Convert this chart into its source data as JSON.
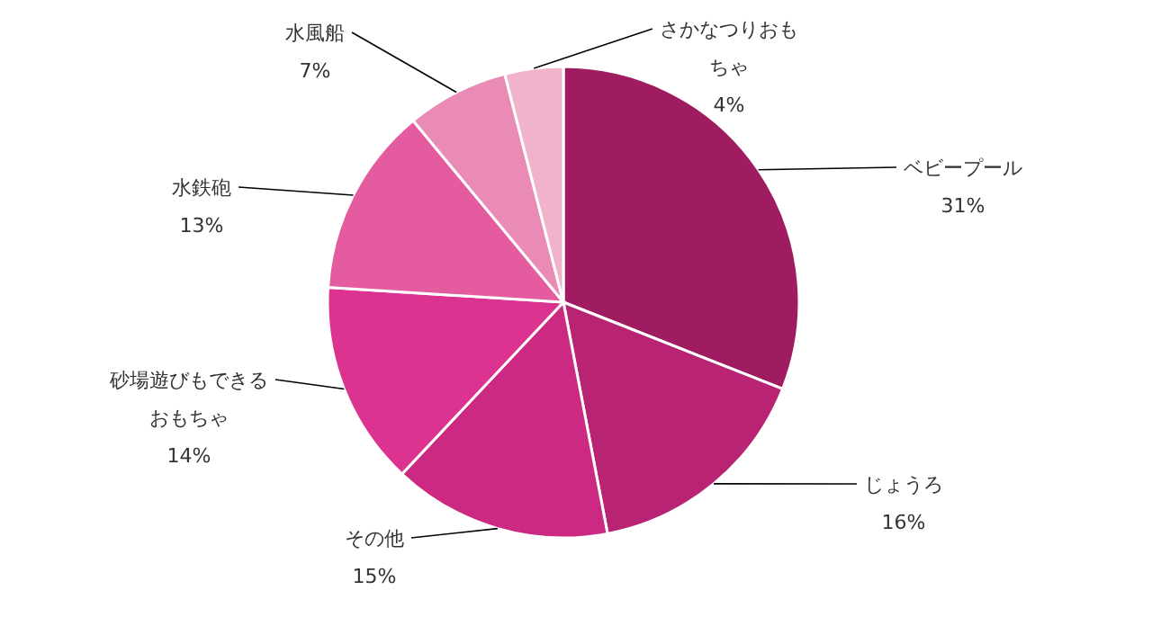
{
  "chart_data": {
    "type": "pie",
    "categories": [
      "ベビープール",
      "じょうろ",
      "その他",
      "砂場遊びもできるおもちゃ",
      "水鉄砲",
      "水風船",
      "さかなつりおもちゃ"
    ],
    "values": [
      31,
      16,
      15,
      14,
      13,
      7,
      4
    ],
    "colors": [
      "#a01c60",
      "#b92373",
      "#cc2a82",
      "#dc3391",
      "#e45c9f",
      "#ea8bb6",
      "#f0b3cb"
    ],
    "value_labels": [
      "31%",
      "16%",
      "15%",
      "14%",
      "13%",
      "7%",
      "4%"
    ]
  }
}
